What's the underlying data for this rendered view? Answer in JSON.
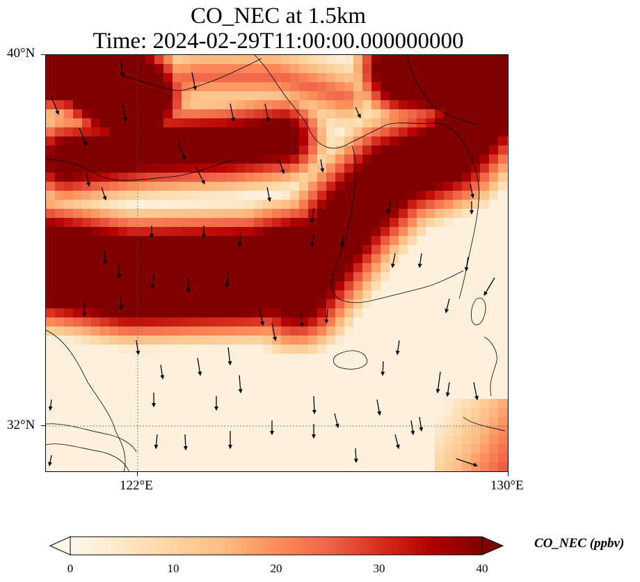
{
  "title": {
    "line1": "CO_NEC at 1.5km",
    "line2": "Time: 2024-02-29T11:00:00.000000000"
  },
  "axes": {
    "lat_ticks": [
      {
        "value": 40,
        "label": "40°N"
      },
      {
        "value": 32,
        "label": "32°N"
      }
    ],
    "lon_ticks": [
      {
        "value": 122,
        "label": "122°E"
      },
      {
        "value": 130,
        "label": "130°E"
      }
    ],
    "lon_range": [
      120,
      130
    ],
    "lat_range": [
      31,
      40
    ],
    "gridlines": "dotted at 122°E and 32°N"
  },
  "colorbar": {
    "label": "CO_NEC (ppbv)",
    "min": 0,
    "max": 40,
    "ticks": [
      "0",
      "10",
      "20",
      "30",
      "40"
    ],
    "colormap": "OrRd",
    "extend": "both",
    "colors": [
      "#fff7ec",
      "#fee8c8",
      "#fdd49e",
      "#fdbb84",
      "#fc8d59",
      "#ef6548",
      "#d7301f",
      "#b30000",
      "#7f0000"
    ]
  },
  "chart_data": {
    "type": "heatmap",
    "variable": "CO_NEC",
    "level": "1.5km",
    "units": "ppbv",
    "features": [
      {
        "region": "south-west band (lon 120–126.5, lat 34.6–36.5)",
        "value": 40
      },
      {
        "region": "north-east band (lon 126–130, lat 36.5–40)",
        "value": 40
      },
      {
        "region": "north-west corner (lon 120–121.5, lat 38–40)",
        "value": 40
      },
      {
        "region": "central Bohai streak (lon 123–125, lat 38–38.5)",
        "value": 40
      },
      {
        "region": "south / East China Sea",
        "value": 2
      },
      {
        "region": "south-east corner (lon 129–130, lat 31)",
        "value": 20
      }
    ],
    "wind_vectors": "predominantly southward-pointing arrows over domain"
  }
}
